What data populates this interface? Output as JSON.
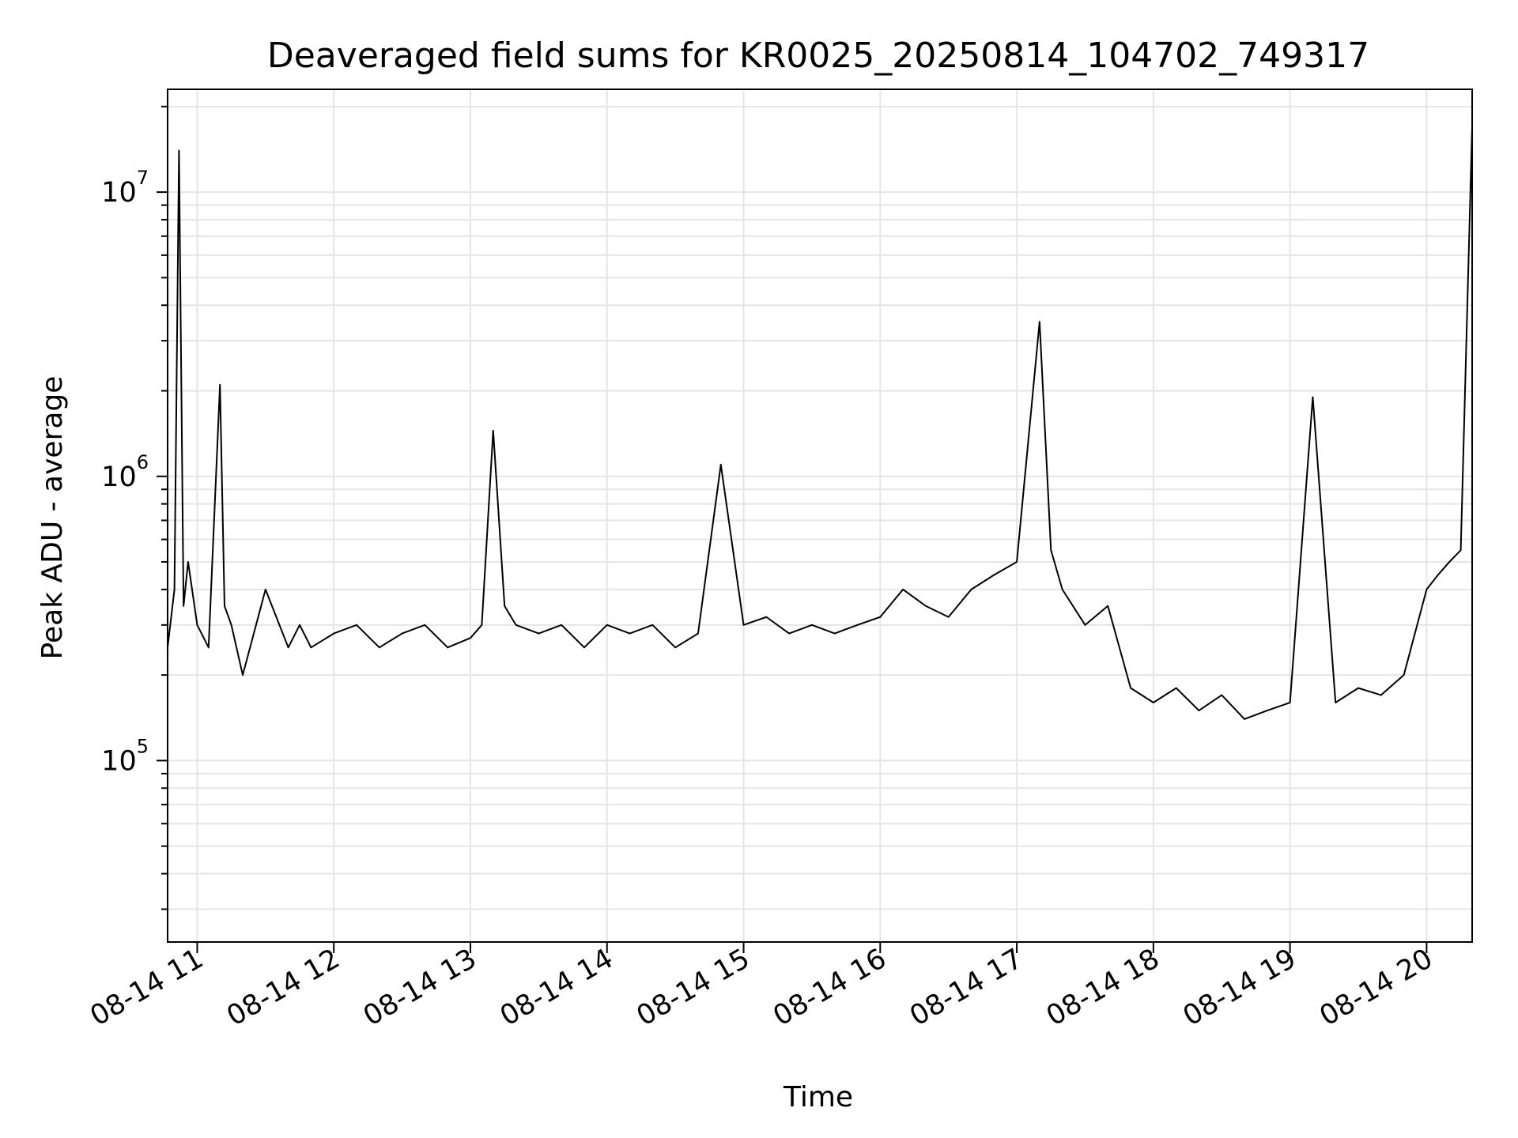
{
  "chart_data": {
    "type": "line",
    "title": "Deaveraged field sums for KR0025_20250814_104702_749317",
    "xlabel": "Time",
    "ylabel": "Peak ADU - average",
    "y_scale": "log",
    "x_axis_type": "datetime",
    "xlim": [
      "2025-08-14T10:47",
      "2025-08-14T20:20"
    ],
    "ylim": [
      23000,
      23000000
    ],
    "grid": true,
    "line_color": "#000000",
    "grid_color": "#e5e5e5",
    "x_ticks": [
      {
        "value": "2025-08-14T11:00",
        "label": "08-14 11"
      },
      {
        "value": "2025-08-14T12:00",
        "label": "08-14 12"
      },
      {
        "value": "2025-08-14T13:00",
        "label": "08-14 13"
      },
      {
        "value": "2025-08-14T14:00",
        "label": "08-14 14"
      },
      {
        "value": "2025-08-14T15:00",
        "label": "08-14 15"
      },
      {
        "value": "2025-08-14T16:00",
        "label": "08-14 16"
      },
      {
        "value": "2025-08-14T17:00",
        "label": "08-14 17"
      },
      {
        "value": "2025-08-14T18:00",
        "label": "08-14 18"
      },
      {
        "value": "2025-08-14T19:00",
        "label": "08-14 19"
      },
      {
        "value": "2025-08-14T20:00",
        "label": "08-14 20"
      }
    ],
    "y_ticks": [
      {
        "value": 100000,
        "base": "10",
        "exponent": "5"
      },
      {
        "value": 1000000,
        "base": "10",
        "exponent": "6"
      },
      {
        "value": 10000000,
        "base": "10",
        "exponent": "7"
      }
    ],
    "series": [
      {
        "x": [
          "2025-08-14T10:47",
          "2025-08-14T10:50",
          "2025-08-14T10:52",
          "2025-08-14T10:54",
          "2025-08-14T10:56",
          "2025-08-14T11:00",
          "2025-08-14T11:05",
          "2025-08-14T11:10",
          "2025-08-14T11:12",
          "2025-08-14T11:15",
          "2025-08-14T11:20",
          "2025-08-14T11:30",
          "2025-08-14T11:40",
          "2025-08-14T11:45",
          "2025-08-14T11:50",
          "2025-08-14T12:00",
          "2025-08-14T12:10",
          "2025-08-14T12:20",
          "2025-08-14T12:30",
          "2025-08-14T12:40",
          "2025-08-14T12:50",
          "2025-08-14T13:00",
          "2025-08-14T13:05",
          "2025-08-14T13:10",
          "2025-08-14T13:15",
          "2025-08-14T13:20",
          "2025-08-14T13:30",
          "2025-08-14T13:40",
          "2025-08-14T13:50",
          "2025-08-14T14:00",
          "2025-08-14T14:10",
          "2025-08-14T14:20",
          "2025-08-14T14:30",
          "2025-08-14T14:40",
          "2025-08-14T14:50",
          "2025-08-14T15:00",
          "2025-08-14T15:10",
          "2025-08-14T15:20",
          "2025-08-14T15:30",
          "2025-08-14T15:40",
          "2025-08-14T15:50",
          "2025-08-14T16:00",
          "2025-08-14T16:10",
          "2025-08-14T16:20",
          "2025-08-14T16:30",
          "2025-08-14T16:40",
          "2025-08-14T16:50",
          "2025-08-14T17:00",
          "2025-08-14T17:10",
          "2025-08-14T17:15",
          "2025-08-14T17:20",
          "2025-08-14T17:30",
          "2025-08-14T17:40",
          "2025-08-14T17:50",
          "2025-08-14T18:00",
          "2025-08-14T18:10",
          "2025-08-14T18:20",
          "2025-08-14T18:30",
          "2025-08-14T18:40",
          "2025-08-14T18:50",
          "2025-08-14T19:00",
          "2025-08-14T19:10",
          "2025-08-14T19:20",
          "2025-08-14T19:30",
          "2025-08-14T19:40",
          "2025-08-14T19:50",
          "2025-08-14T20:00",
          "2025-08-14T20:05",
          "2025-08-14T20:10",
          "2025-08-14T20:15",
          "2025-08-14T20:20"
        ],
        "y": [
          250000,
          400000,
          14000000,
          350000,
          500000,
          300000,
          250000,
          2100000,
          350000,
          300000,
          200000,
          400000,
          250000,
          300000,
          250000,
          280000,
          300000,
          250000,
          280000,
          300000,
          250000,
          270000,
          300000,
          1450000,
          350000,
          300000,
          280000,
          300000,
          250000,
          300000,
          280000,
          300000,
          250000,
          280000,
          1100000,
          300000,
          320000,
          280000,
          300000,
          280000,
          300000,
          320000,
          400000,
          350000,
          320000,
          400000,
          450000,
          500000,
          3500000,
          550000,
          400000,
          300000,
          350000,
          180000,
          160000,
          180000,
          150000,
          170000,
          140000,
          150000,
          160000,
          1900000,
          160000,
          180000,
          170000,
          200000,
          400000,
          450000,
          500000,
          550000,
          17000000
        ]
      }
    ]
  }
}
